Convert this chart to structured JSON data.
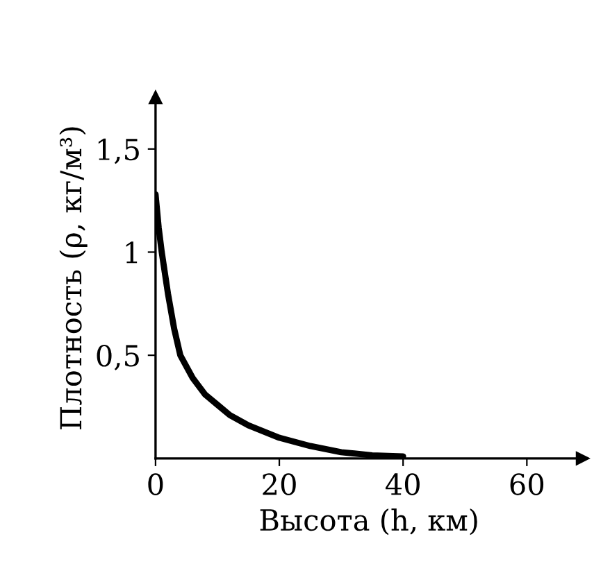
{
  "chart_data": {
    "type": "line",
    "xlabel": "Высота (h, км)",
    "ylabel": "Плотность (ρ, кг/м³)",
    "x": [
      0,
      0.5,
      1,
      2,
      3,
      4,
      6,
      8,
      10,
      12,
      15,
      20,
      25,
      30,
      35,
      40
    ],
    "series": [
      {
        "color": "#000000",
        "values": [
          1.28,
          1.12,
          1.0,
          0.8,
          0.63,
          0.5,
          0.39,
          0.31,
          0.26,
          0.21,
          0.16,
          0.1,
          0.06,
          0.03,
          0.015,
          0.01
        ]
      }
    ],
    "xlim": [
      0,
      69
    ],
    "ylim": [
      0,
      1.75
    ],
    "xticks": [
      0,
      20,
      40,
      60
    ],
    "yticks": [
      {
        "value": 0.5,
        "label": "0,5"
      },
      {
        "value": 1,
        "label": "1"
      },
      {
        "value": 1.5,
        "label": "1,5"
      }
    ],
    "grid": false,
    "legend": false,
    "marker": "none",
    "line_style": "solid"
  }
}
